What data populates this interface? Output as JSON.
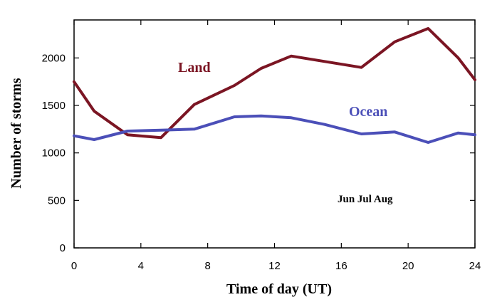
{
  "chart_data": {
    "type": "line",
    "title": "",
    "xlabel": "Time of day (UT)",
    "ylabel": "Number of storms",
    "xlim": [
      0,
      24
    ],
    "ylim": [
      0,
      2400
    ],
    "xticks": [
      0,
      4,
      8,
      12,
      16,
      20,
      24
    ],
    "yticks": [
      0,
      500,
      1000,
      1500,
      2000
    ],
    "grid": false,
    "annotation": "Jun Jul Aug",
    "series": [
      {
        "name": "Land",
        "color": "#7b1523",
        "x": [
          0,
          1.2,
          3.2,
          5.2,
          7.2,
          9.6,
          11.2,
          13.0,
          17.2,
          19.2,
          21.2,
          23.0,
          24
        ],
        "y": [
          1750,
          1440,
          1190,
          1160,
          1510,
          1710,
          1890,
          2020,
          1900,
          2170,
          2310,
          2000,
          1770
        ]
      },
      {
        "name": "Ocean",
        "color": "#4b4fb8",
        "x": [
          0,
          1.2,
          3.2,
          5.2,
          7.2,
          9.6,
          11.2,
          13.0,
          15.0,
          17.2,
          19.2,
          21.2,
          23.0,
          24
        ],
        "y": [
          1180,
          1140,
          1230,
          1240,
          1250,
          1380,
          1390,
          1370,
          1300,
          1200,
          1220,
          1110,
          1210,
          1190
        ]
      }
    ]
  }
}
